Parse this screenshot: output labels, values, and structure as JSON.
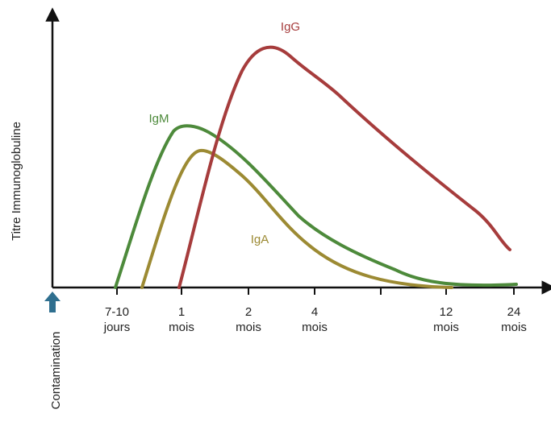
{
  "y_axis_label": "Titre Immunoglobuline",
  "x_labels": [
    {
      "line1": "7-10",
      "line2": "jours"
    },
    {
      "line1": "1",
      "line2": "mois"
    },
    {
      "line1": "2",
      "line2": "mois"
    },
    {
      "line1": "4",
      "line2": "mois"
    },
    {
      "line1": "12",
      "line2": "mois"
    },
    {
      "line1": "24",
      "line2": "mois"
    }
  ],
  "curves": [
    {
      "label": "IgG"
    },
    {
      "label": "IgM"
    },
    {
      "label": "IgA"
    }
  ],
  "marker_label": "Contamination"
}
